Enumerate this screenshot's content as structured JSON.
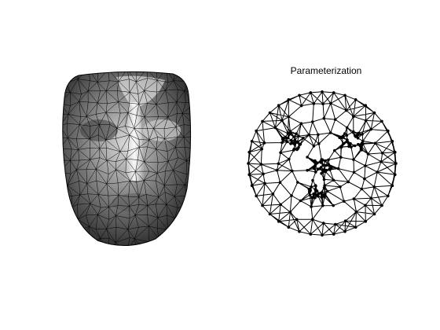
{
  "figure": {
    "background": "#ffffff",
    "panels": [
      {
        "id": "face",
        "title": "",
        "mesh_color": "#000000",
        "shading": "grayscale"
      },
      {
        "id": "param",
        "title": "Parameterization",
        "mesh_color": "#000000",
        "vertex_color": "#000000"
      }
    ]
  }
}
